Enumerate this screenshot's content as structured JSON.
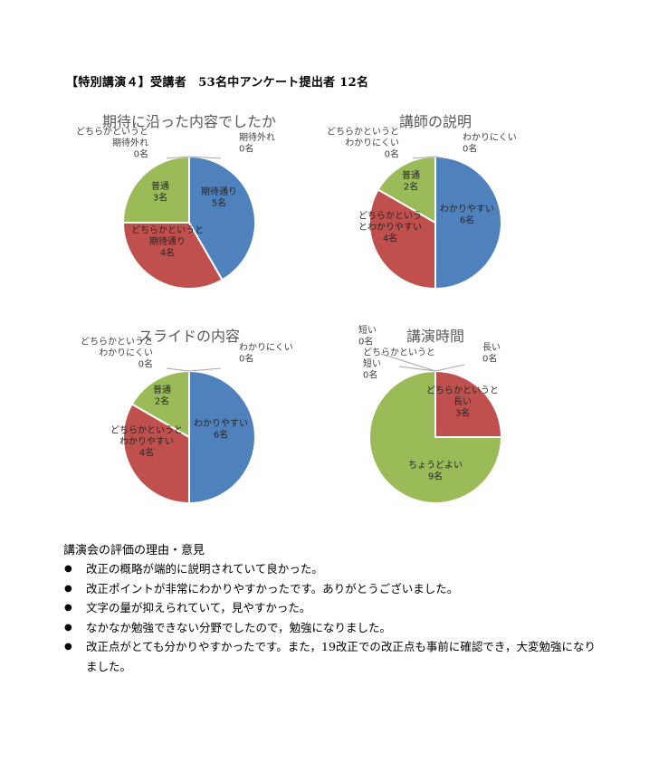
{
  "heading": "【特別講演４】受講者　53名中アンケート提出者 12名",
  "colors": {
    "blue": "#4f81bd",
    "red": "#c0504d",
    "green": "#9bbb59",
    "leader": "#a6a6a6"
  },
  "chart_data": [
    {
      "type": "pie",
      "title": "期待に沿った内容でしたか",
      "slices": [
        {
          "lines": [
            "期待外れ",
            "0名"
          ],
          "value": 0,
          "color": "#4f81bd"
        },
        {
          "lines": [
            "期待通り",
            "5名"
          ],
          "value": 5,
          "color": "#4f81bd"
        },
        {
          "lines": [
            "どちらかというと",
            "期待通り",
            "4名"
          ],
          "value": 4,
          "color": "#c0504d"
        },
        {
          "lines": [
            "普通",
            "3名"
          ],
          "value": 3,
          "color": "#9bbb59"
        },
        {
          "lines": [
            "どちらかというと",
            "期待外れ",
            "0名"
          ],
          "value": 0,
          "color": "#9bbb59"
        }
      ]
    },
    {
      "type": "pie",
      "title": "講師の説明",
      "slices": [
        {
          "lines": [
            "わかりにくい",
            "0名"
          ],
          "value": 0,
          "color": "#4f81bd"
        },
        {
          "lines": [
            "わかりやすい",
            "6名"
          ],
          "value": 6,
          "color": "#4f81bd"
        },
        {
          "lines": [
            "どちらかという",
            "とわかりやすい",
            "4名"
          ],
          "value": 4,
          "color": "#c0504d"
        },
        {
          "lines": [
            "普通",
            "2名"
          ],
          "value": 2,
          "color": "#9bbb59"
        },
        {
          "lines": [
            "どちらかというと",
            "わかりにくい",
            "0名"
          ],
          "value": 0,
          "color": "#9bbb59"
        }
      ]
    },
    {
      "type": "pie",
      "title": "スライドの内容",
      "slices": [
        {
          "lines": [
            "わかりにくい",
            "0名"
          ],
          "value": 0,
          "color": "#4f81bd"
        },
        {
          "lines": [
            "わかりやすい",
            "6名"
          ],
          "value": 6,
          "color": "#4f81bd"
        },
        {
          "lines": [
            "どちらかというと",
            "わかりやすい",
            "4名"
          ],
          "value": 4,
          "color": "#c0504d"
        },
        {
          "lines": [
            "普通",
            "2名"
          ],
          "value": 2,
          "color": "#9bbb59"
        },
        {
          "lines": [
            "どちらかというと",
            "わかりにくい",
            "0名"
          ],
          "value": 0,
          "color": "#9bbb59"
        }
      ]
    },
    {
      "type": "pie",
      "title": "講演時間",
      "slices": [
        {
          "lines": [
            "長い",
            "0名"
          ],
          "value": 0,
          "color": "#4f81bd"
        },
        {
          "lines": [
            "どちらかというと",
            "長い",
            "3名"
          ],
          "value": 3,
          "color": "#c0504d"
        },
        {
          "lines": [
            "ちょうどよい",
            "9名"
          ],
          "value": 9,
          "color": "#9bbb59"
        },
        {
          "lines": [
            "どちらかというと",
            "短い",
            "0名"
          ],
          "value": 0,
          "color": "#9bbb59"
        },
        {
          "lines": [
            "短い",
            "0名"
          ],
          "value": 0,
          "color": "#9bbb59"
        }
      ]
    }
  ],
  "comments": {
    "title": "講演会の評価の理由・意見",
    "bullet": "●",
    "items": [
      "改正の概略が端的に説明されていて良かった。",
      "改正ポイントが非常にわかりやすかったです。ありがとうございました。",
      "文字の量が抑えられていて，見やすかった。",
      "なかなか勉強できない分野でしたので，勉強になりました。",
      "改正点がとても分かりやすかったです。また，19改正での改正点も事前に確認でき，大変勉強になりました。"
    ]
  }
}
